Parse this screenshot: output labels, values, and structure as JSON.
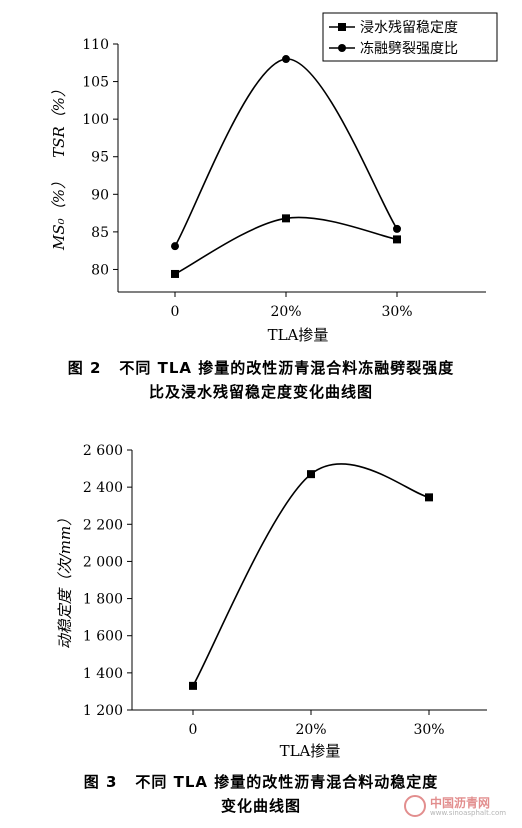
{
  "chart_data": [
    {
      "type": "line",
      "categories": [
        "0",
        "20%",
        "30%"
      ],
      "xlabel": "TLA掺量",
      "ylabel_ms": "MS₀（%）",
      "ylabel_tsr": "TSR（%）",
      "ylim": [
        77,
        110
      ],
      "yticks": [
        "80",
        "85",
        "90",
        "95",
        "100",
        "105",
        "110"
      ],
      "legend": "top-right",
      "series": [
        {
          "name": "浸水残留稳定度",
          "marker": "square",
          "values": [
            79.4,
            86.8,
            84.0
          ]
        },
        {
          "name": "冻融劈裂强度比",
          "marker": "circle",
          "values": [
            83.1,
            108.0,
            85.4
          ]
        }
      ],
      "caption_num": "图 2",
      "caption_line1": "不同 TLA 掺量的改性沥青混合料冻融劈裂强度",
      "caption_line2": "比及浸水残留稳定度变化曲线图"
    },
    {
      "type": "line",
      "categories": [
        "0",
        "20%",
        "30%"
      ],
      "xlabel": "TLA掺量",
      "ylabel": "动稳定度（次/mm）",
      "ylim": [
        1200,
        2600
      ],
      "yticks": [
        "1 200",
        "1 400",
        "1 600",
        "1 800",
        "2 000",
        "2 200",
        "2 400",
        "2 600"
      ],
      "series": [
        {
          "marker": "square",
          "values": [
            1330,
            2470,
            2345
          ]
        }
      ],
      "caption_num": "图 3",
      "caption_line1": "不同 TLA 掺量的改性沥青混合料动稳定度",
      "caption_line2": "变化曲线图"
    }
  ],
  "watermark": {
    "main": "中国沥青网",
    "sub": "www.sinoasphalt.com"
  }
}
